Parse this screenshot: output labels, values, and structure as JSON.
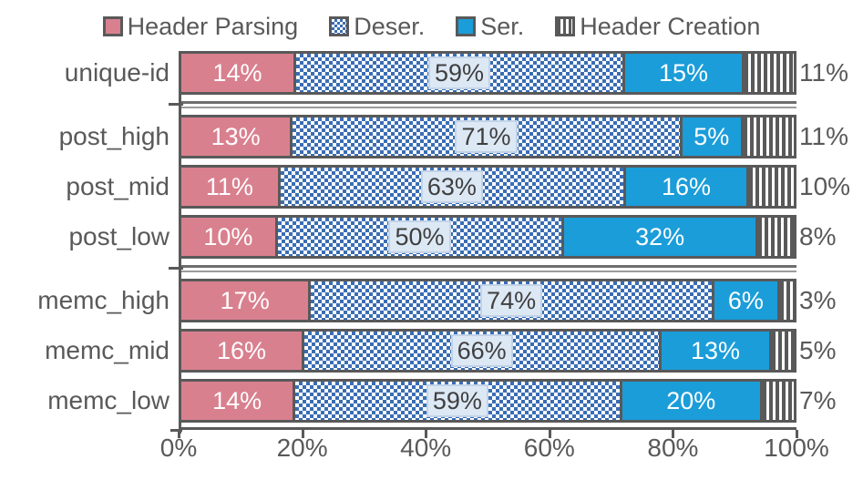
{
  "colors": {
    "axis": "#595959",
    "text": "#595959",
    "pink": "#d9808f",
    "blue": "#1b9dd9",
    "checker": "#3a6db4",
    "stripe": "#595959",
    "label-box-bg": "#dde8f5",
    "label-box-border": "#c2d3e8"
  },
  "legend": [
    {
      "label": "Header Parsing",
      "swatch": "pink-solid"
    },
    {
      "label": "Deser.",
      "swatch": "blue-checker"
    },
    {
      "label": "Ser.",
      "swatch": "blue-solid"
    },
    {
      "label": "Header Creation",
      "swatch": "stripe-vertical"
    }
  ],
  "chart_data": {
    "type": "bar",
    "orientation": "horizontal",
    "stacked": true,
    "categories": [
      "unique-id",
      "post_high",
      "post_mid",
      "post_low",
      "memc_high",
      "memc_mid",
      "memc_low"
    ],
    "series": [
      {
        "name": "Header Parsing",
        "values": [
          14,
          13,
          11,
          10,
          17,
          16,
          14
        ]
      },
      {
        "name": "Deser.",
        "values": [
          59,
          71,
          63,
          50,
          74,
          66,
          59
        ]
      },
      {
        "name": "Ser.",
        "values": [
          15,
          5,
          16,
          32,
          6,
          13,
          20
        ]
      },
      {
        "name": "Header Creation",
        "values": [
          11,
          11,
          10,
          8,
          3,
          5,
          7
        ]
      }
    ],
    "value_suffix": "%",
    "x_ticks": [
      "0%",
      "20%",
      "40%",
      "60%",
      "80%",
      "100%"
    ],
    "xlim": [
      0,
      100
    ],
    "grid": false,
    "legend_position": "top",
    "group_separators_after": [
      0,
      3
    ]
  }
}
